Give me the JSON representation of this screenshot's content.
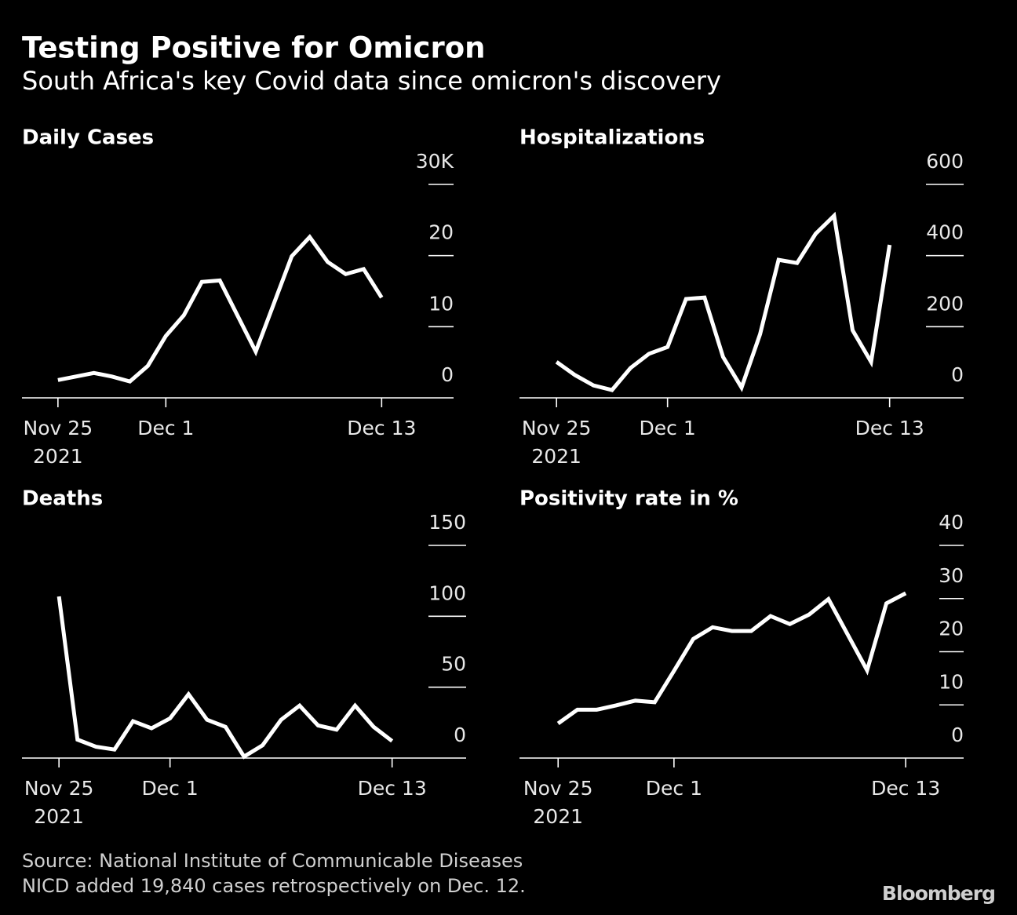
{
  "title": "Testing Positive for Omicron",
  "subtitle": "South Africa's key Covid data since omicron's discovery",
  "source": "Source: National Institute of Communicable Diseases",
  "note": "NICD added 19,840 cases retrospectively on Dec. 12.",
  "brand": "Bloomberg",
  "chart_data": [
    {
      "type": "line",
      "title": "Daily Cases",
      "x": [
        "2021-11-25",
        "2021-11-26",
        "2021-11-27",
        "2021-11-28",
        "2021-11-29",
        "2021-11-30",
        "2021-12-01",
        "2021-12-02",
        "2021-12-03",
        "2021-12-04",
        "2021-12-05",
        "2021-12-06",
        "2021-12-07",
        "2021-12-08",
        "2021-12-09",
        "2021-12-10",
        "2021-12-11",
        "2021-12-12",
        "2021-12-13"
      ],
      "series": [
        {
          "name": "Daily Cases",
          "color": "#ffffff",
          "values": [
            2.5,
            3.0,
            3.5,
            3.0,
            2.3,
            4.5,
            8.7,
            11.6,
            16.3,
            16.5,
            11.5,
            6.5,
            13.2,
            19.9,
            22.6,
            19.1,
            17.4,
            18.1,
            14.1
          ]
        }
      ],
      "xlim": [
        "2021-11-23",
        "2021-12-17"
      ],
      "xticks": [
        {
          "value": "2021-11-25",
          "label": "Nov 25",
          "sublabel": "2021"
        },
        {
          "value": "2021-12-01",
          "label": "Dec 1"
        },
        {
          "value": "2021-12-13",
          "label": "Dec 13"
        }
      ],
      "ylim": [
        0,
        30
      ],
      "yticks": [
        0,
        10,
        20,
        {
          "value": 30,
          "label": "30K"
        }
      ]
    },
    {
      "type": "line",
      "title": "Hospitalizations",
      "x": [
        "2021-11-25",
        "2021-11-26",
        "2021-11-27",
        "2021-11-28",
        "2021-11-29",
        "2021-11-30",
        "2021-12-01",
        "2021-12-02",
        "2021-12-03",
        "2021-12-04",
        "2021-12-05",
        "2021-12-06",
        "2021-12-07",
        "2021-12-08",
        "2021-12-09",
        "2021-12-10",
        "2021-12-11",
        "2021-12-12",
        "2021-12-13"
      ],
      "series": [
        {
          "name": "Hospitalizations",
          "color": "#ffffff",
          "values": [
            101,
            64,
            35,
            22,
            84,
            124,
            143,
            278,
            282,
            115,
            29,
            179,
            388,
            379,
            461,
            512,
            190,
            101,
            430
          ]
        }
      ],
      "xlim": [
        "2021-11-23",
        "2021-12-17"
      ],
      "xticks": [
        {
          "value": "2021-11-25",
          "label": "Nov 25",
          "sublabel": "2021"
        },
        {
          "value": "2021-12-01",
          "label": "Dec 1"
        },
        {
          "value": "2021-12-13",
          "label": "Dec 13"
        }
      ],
      "ylim": [
        0,
        600
      ],
      "yticks": [
        0,
        200,
        400,
        600
      ]
    },
    {
      "type": "line",
      "title": "Deaths",
      "x": [
        "2021-11-25",
        "2021-11-26",
        "2021-11-27",
        "2021-11-28",
        "2021-11-29",
        "2021-11-30",
        "2021-12-01",
        "2021-12-02",
        "2021-12-03",
        "2021-12-04",
        "2021-12-05",
        "2021-12-06",
        "2021-12-07",
        "2021-12-08",
        "2021-12-09",
        "2021-12-10",
        "2021-12-11",
        "2021-12-12",
        "2021-12-13"
      ],
      "series": [
        {
          "name": "Deaths",
          "color": "#ffffff",
          "values": [
            114,
            13,
            8,
            6,
            26,
            21,
            28,
            45,
            27,
            22,
            1,
            9,
            27,
            37,
            23,
            20,
            37,
            22,
            12
          ]
        }
      ],
      "xlim": [
        "2021-11-23",
        "2021-12-17"
      ],
      "xticks": [
        {
          "value": "2021-11-25",
          "label": "Nov 25",
          "sublabel": "2021"
        },
        {
          "value": "2021-12-01",
          "label": "Dec 1"
        },
        {
          "value": "2021-12-13",
          "label": "Dec 13"
        }
      ],
      "ylim": [
        0,
        150
      ],
      "yticks": [
        0,
        50,
        100,
        150
      ]
    },
    {
      "type": "line",
      "title": "Positivity rate in %",
      "x": [
        "2021-11-25",
        "2021-11-26",
        "2021-11-27",
        "2021-11-28",
        "2021-11-29",
        "2021-11-30",
        "2021-12-01",
        "2021-12-02",
        "2021-12-03",
        "2021-12-04",
        "2021-12-05",
        "2021-12-06",
        "2021-12-07",
        "2021-12-08",
        "2021-12-09",
        "2021-12-10",
        "2021-12-11",
        "2021-12-12",
        "2021-12-13"
      ],
      "series": [
        {
          "name": "Positivity rate in %",
          "color": "#ffffff",
          "values": [
            6.5,
            9.1,
            9.1,
            9.9,
            10.8,
            10.5,
            16.4,
            22.4,
            24.6,
            23.9,
            23.9,
            26.7,
            25.2,
            27.0,
            29.9,
            23.2,
            16.5,
            29.1,
            31.0
          ]
        }
      ],
      "xlim": [
        "2021-11-23",
        "2021-12-16"
      ],
      "xticks": [
        {
          "value": "2021-11-25",
          "label": "Nov 25",
          "sublabel": "2021"
        },
        {
          "value": "2021-12-01",
          "label": "Dec 1"
        },
        {
          "value": "2021-12-13",
          "label": "Dec 13"
        }
      ],
      "ylim": [
        0,
        40
      ],
      "yticks": [
        0,
        10,
        20,
        30,
        40
      ]
    }
  ]
}
